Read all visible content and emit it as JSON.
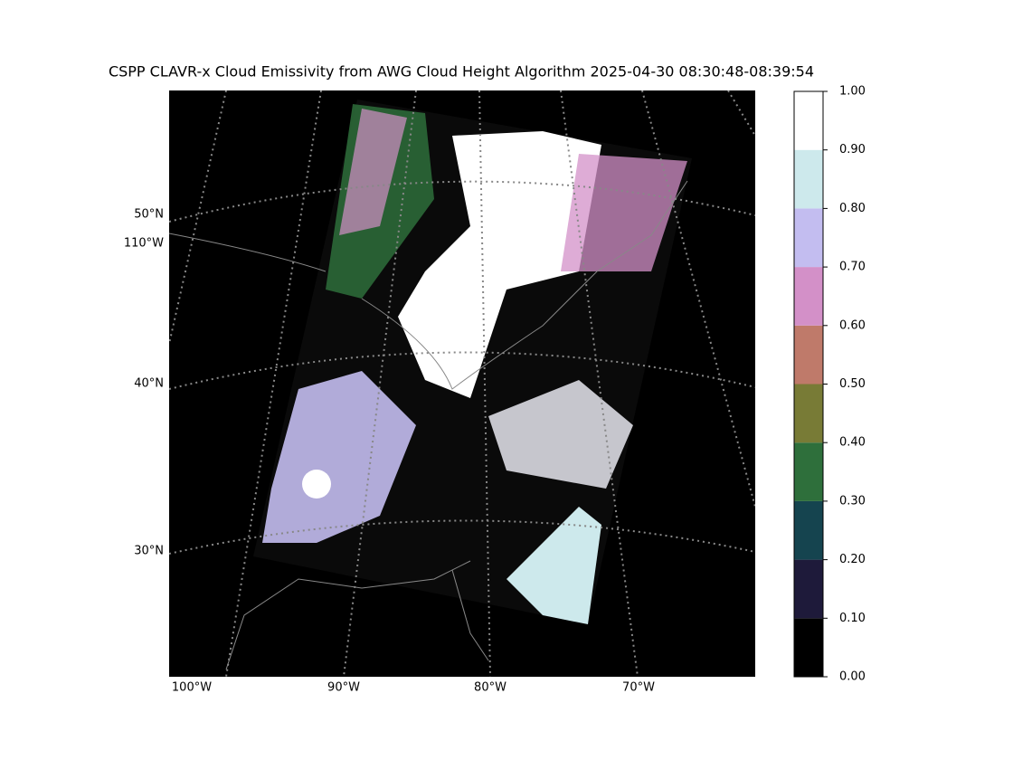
{
  "title": "CSPP CLAVR-x Cloud Emissivity from AWG Cloud Height Algorithm 2025-04-30 08:30:48-08:39:54",
  "map": {
    "lat_labels": [
      "50°N",
      "110°W",
      "40°N",
      "30°N"
    ],
    "lon_labels": [
      "100°W",
      "90°W",
      "80°W",
      "70°W"
    ]
  },
  "colorbar": {
    "ticks": [
      {
        "value": 0,
        "label": "0.00"
      },
      {
        "value": 0.1,
        "label": "0.10"
      },
      {
        "value": 0.2,
        "label": "0.20"
      },
      {
        "value": 0.3,
        "label": "0.30"
      },
      {
        "value": 0.4,
        "label": "0.40"
      },
      {
        "value": 0.5,
        "label": "0.50"
      },
      {
        "value": 0.6,
        "label": "0.60"
      },
      {
        "value": 0.7,
        "label": "0.70"
      },
      {
        "value": 0.8,
        "label": "0.80"
      },
      {
        "value": 0.9,
        "label": "0.90"
      },
      {
        "value": 1,
        "label": "1.00"
      }
    ],
    "colors": [
      "#000000",
      "#1e1a3a",
      "#15444f",
      "#2e6f3b",
      "#787b36",
      "#bf7a6a",
      "#d390c8",
      "#c3bdf0",
      "#cde9ec",
      "#ffffff"
    ]
  }
}
